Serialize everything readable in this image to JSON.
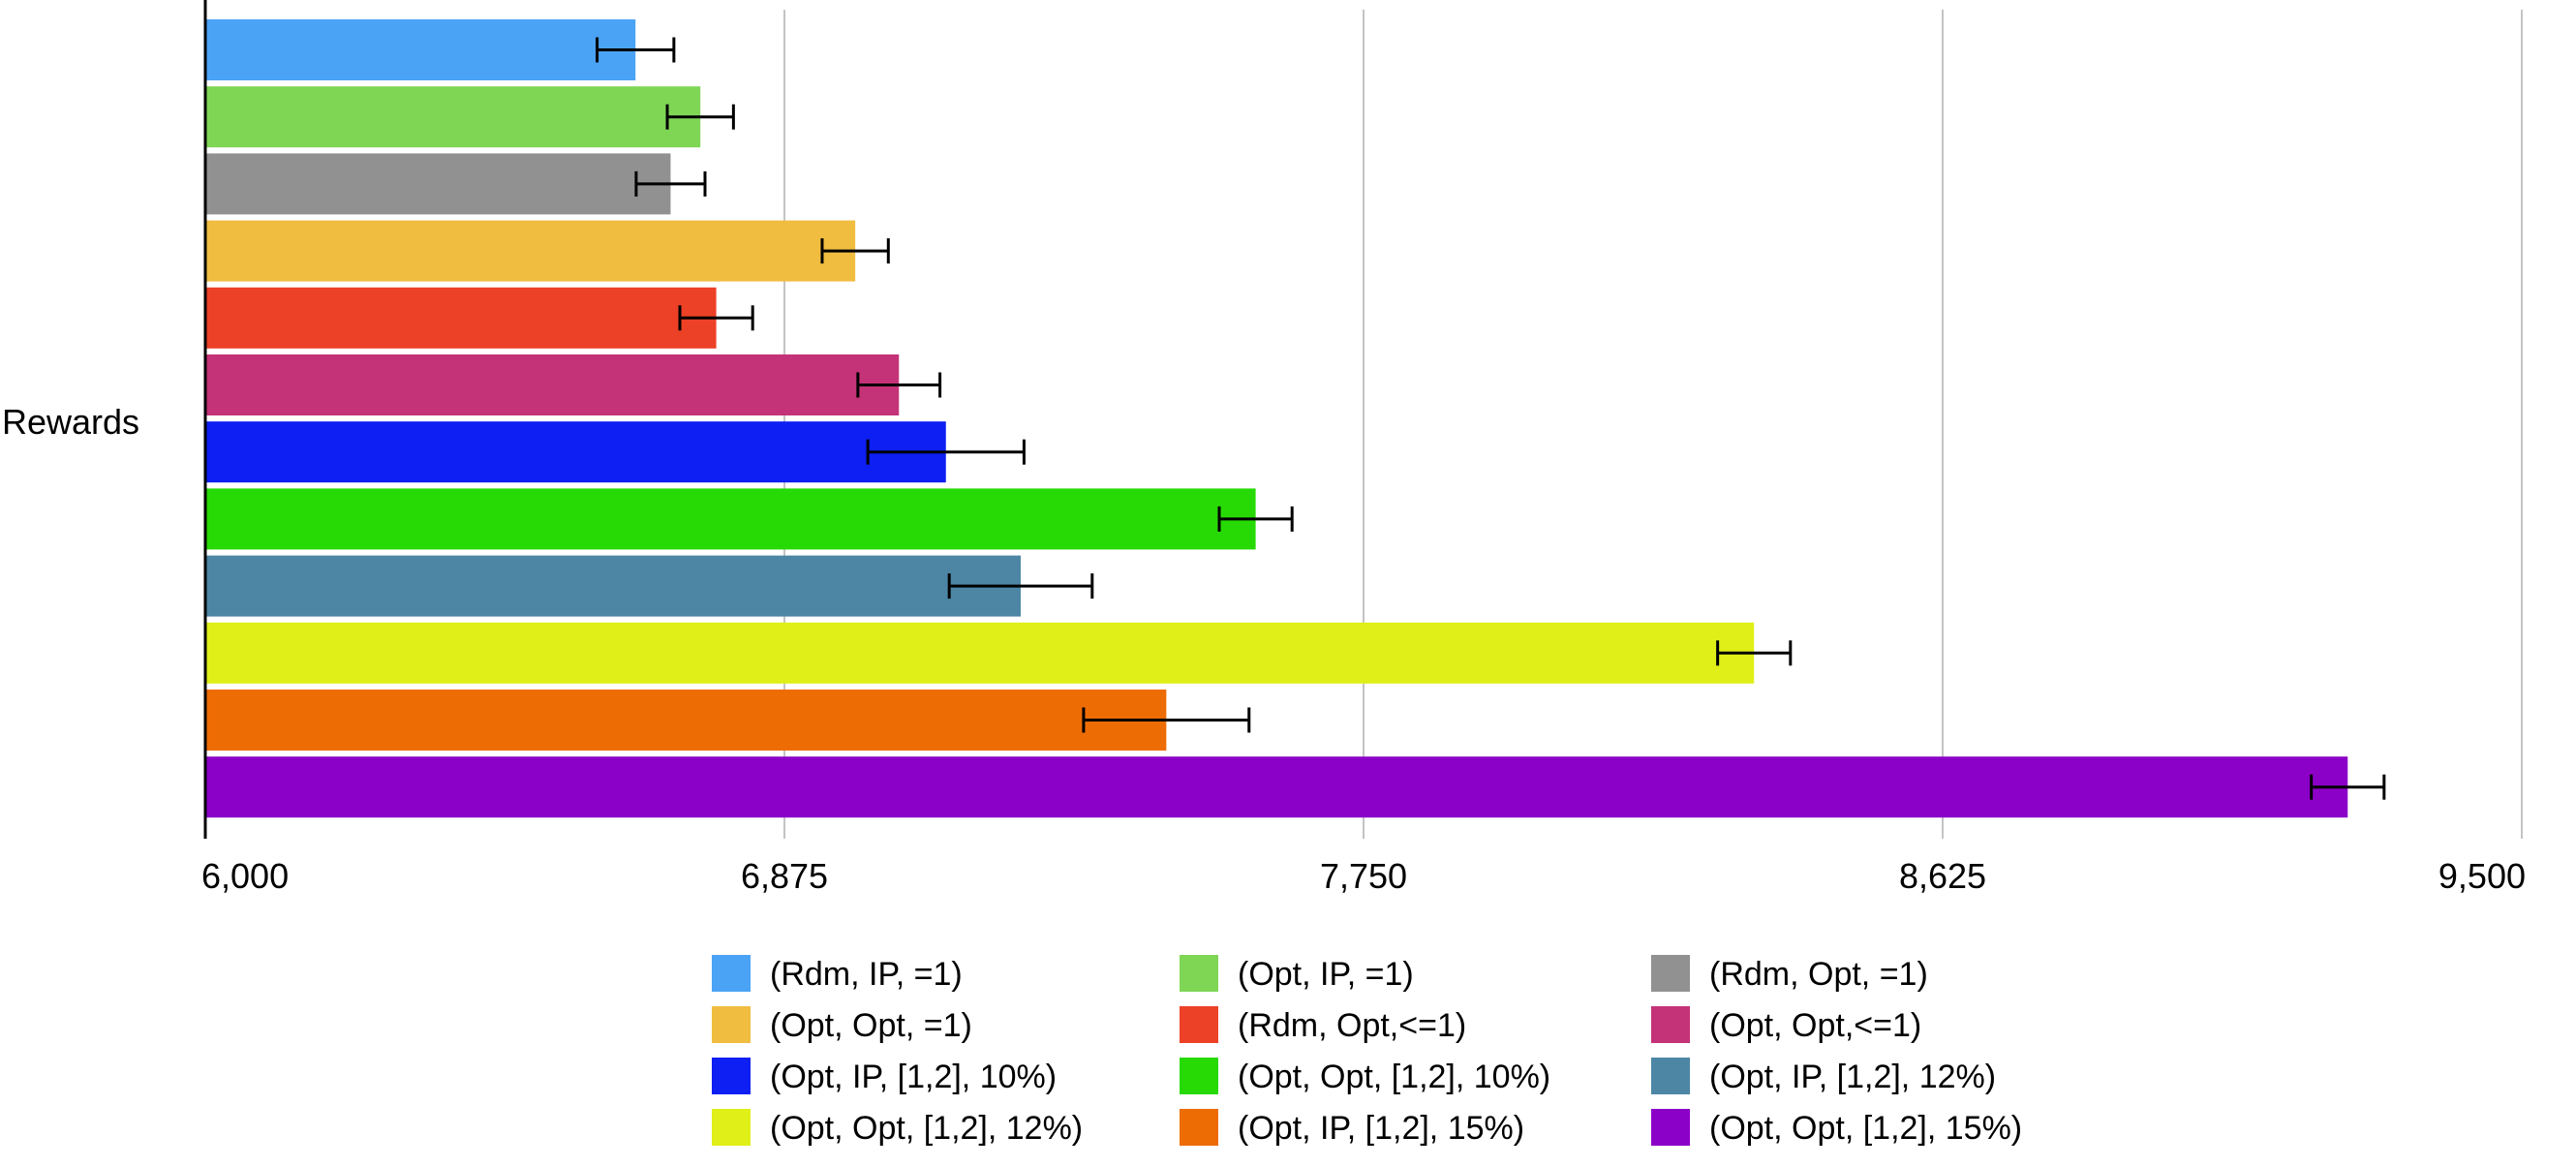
{
  "chart_data": {
    "type": "bar",
    "orientation": "horizontal",
    "categories": [
      "Rewards"
    ],
    "ylabel": "Rewards",
    "xlim": [
      6000,
      9500
    ],
    "xticks": [
      6000,
      6875,
      7750,
      8625,
      9500
    ],
    "xtick_labels": [
      "6,000",
      "6,875",
      "7,750",
      "8,625",
      "9,500"
    ],
    "grid": true,
    "legend_position": "bottom",
    "series": [
      {
        "name": "(Rdm, IP, =1)",
        "value": 6650,
        "error": 58,
        "color": "#4aa3f5"
      },
      {
        "name": "(Opt, IP, =1)",
        "value": 6748,
        "error": 50,
        "color": "#7fd655"
      },
      {
        "name": "(Rdm, Opt, =1)",
        "value": 6703,
        "error": 52,
        "color": "#919191"
      },
      {
        "name": "(Opt, Opt, =1)",
        "value": 6982,
        "error": 50,
        "color": "#f0bd40"
      },
      {
        "name": "(Rdm, Opt,<=1)",
        "value": 6772,
        "error": 55,
        "color": "#ec4127"
      },
      {
        "name": "(Opt, Opt,<=1)",
        "value": 7048,
        "error": 62,
        "color": "#c43277"
      },
      {
        "name": "(Opt, IP, [1,2], 10%)",
        "value": 7119,
        "error": 118,
        "color": "#0d1ff2"
      },
      {
        "name": "(Opt, Opt, [1,2], 10%)",
        "value": 7587,
        "error": 55,
        "color": "#27da05"
      },
      {
        "name": "(Opt, IP, [1,2], 12%)",
        "value": 7232,
        "error": 108,
        "color": "#4d86a5"
      },
      {
        "name": "(Opt, Opt, [1,2], 12%)",
        "value": 8340,
        "error": 55,
        "color": "#dfef17"
      },
      {
        "name": "(Opt, IP, [1,2], 15%)",
        "value": 7452,
        "error": 125,
        "color": "#ee6c04"
      },
      {
        "name": "(Opt, Opt, [1,2], 15%)",
        "value": 9237,
        "error": 55,
        "color": "#8c01c8"
      }
    ]
  }
}
